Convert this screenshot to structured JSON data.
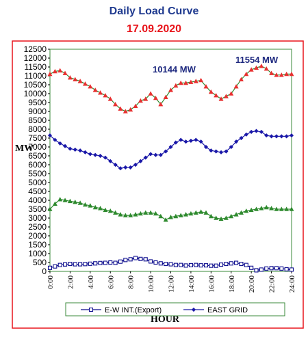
{
  "chart_data": {
    "type": "line",
    "title": "Daily Load Curve",
    "subtitle": "17.09.2020",
    "xlabel": "HOUR",
    "ylabel": "MW",
    "ylim": [
      0,
      12500
    ],
    "yticks": [
      0,
      500,
      1000,
      1500,
      2000,
      2500,
      3000,
      3500,
      4000,
      4500,
      5000,
      5500,
      6000,
      6500,
      7000,
      7500,
      8000,
      8500,
      9000,
      9500,
      10000,
      10500,
      11000,
      11500,
      12000,
      12500
    ],
    "xlim": [
      0,
      24
    ],
    "xticks": [
      "0:00",
      "2:00",
      "4:00",
      "6:00",
      "8:00",
      "10:00",
      "12:00",
      "14:00",
      "16:00",
      "18:00",
      "20:00",
      "22:00",
      "24:00"
    ],
    "legend_position": "bottom",
    "annotations": [
      {
        "text": "11554 MW",
        "near_x": 21,
        "near_y": 11554
      },
      {
        "text": "10144 MW",
        "near_x": 11.5,
        "near_y": 10144
      }
    ],
    "series": [
      {
        "name": "E-W INT.(Export)",
        "in_legend": true,
        "color": "#0a0a8c",
        "marker": "square",
        "values": [
          200,
          280,
          360,
          390,
          420,
          400,
          400,
          410,
          430,
          450,
          470,
          480,
          500,
          480,
          550,
          640,
          680,
          750,
          700,
          680,
          560,
          500,
          450,
          420,
          400,
          360,
          360,
          330,
          350,
          360,
          340,
          340,
          320,
          320,
          380,
          420,
          450,
          480,
          420,
          360,
          200,
          60,
          100,
          160,
          180,
          180,
          160,
          120,
          100
        ]
      },
      {
        "name": "EAST GRID",
        "in_legend": true,
        "color": "#1a18a8",
        "marker": "diamond",
        "values": [
          7650,
          7400,
          7200,
          7050,
          6900,
          6850,
          6800,
          6700,
          6600,
          6550,
          6500,
          6400,
          6200,
          6000,
          5800,
          5850,
          5850,
          6000,
          6200,
          6400,
          6600,
          6550,
          6550,
          6750,
          7000,
          7250,
          7400,
          7300,
          7350,
          7400,
          7300,
          7000,
          6800,
          6750,
          6700,
          6750,
          7000,
          7300,
          7500,
          7700,
          7850,
          7900,
          7850,
          7650,
          7600,
          7600,
          7600,
          7600,
          7650
        ]
      },
      {
        "name": "",
        "in_legend": false,
        "color": "#2e8a2e",
        "marker": "triangle",
        "values": [
          3500,
          3800,
          4050,
          4000,
          3950,
          3900,
          3850,
          3750,
          3700,
          3600,
          3550,
          3450,
          3400,
          3300,
          3200,
          3150,
          3150,
          3200,
          3250,
          3300,
          3300,
          3250,
          3100,
          2900,
          3050,
          3100,
          3150,
          3200,
          3250,
          3300,
          3350,
          3300,
          3100,
          3000,
          2950,
          3000,
          3100,
          3200,
          3300,
          3400,
          3450,
          3500,
          3550,
          3600,
          3550,
          3500,
          3500,
          3500,
          3500
        ]
      },
      {
        "name": "",
        "in_legend": false,
        "color": "#e83030",
        "line_color": "#2e8a2e",
        "marker": "triangle",
        "values": [
          11100,
          11250,
          11300,
          11150,
          10900,
          10800,
          10700,
          10550,
          10400,
          10200,
          10050,
          9900,
          9700,
          9400,
          9150,
          9000,
          9100,
          9300,
          9600,
          9700,
          10000,
          9750,
          9400,
          9800,
          10200,
          10450,
          10600,
          10600,
          10650,
          10700,
          10750,
          10400,
          10100,
          9900,
          9700,
          9850,
          10000,
          10400,
          10800,
          11100,
          11350,
          11450,
          11550,
          11400,
          11150,
          11050,
          11050,
          11100,
          11100
        ]
      }
    ]
  }
}
